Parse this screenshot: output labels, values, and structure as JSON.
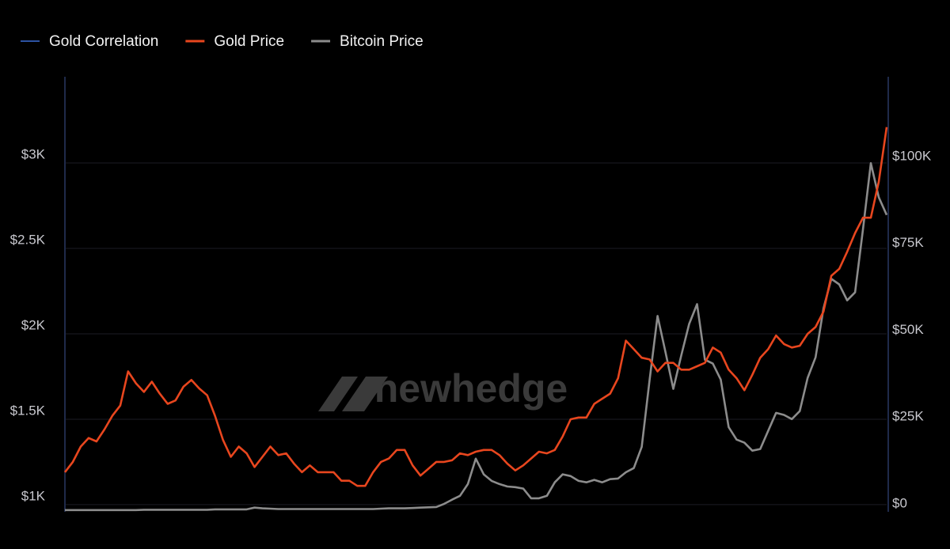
{
  "chart_data": {
    "type": "line",
    "watermark": "newhedge",
    "series": [
      {
        "name": "Gold Correlation",
        "color": "#3b6fd8",
        "axis": "y",
        "values": [
          null,
          null,
          null,
          null,
          null,
          null,
          null,
          null,
          null,
          null,
          null,
          null,
          null,
          null,
          null,
          null,
          null,
          null,
          null,
          null,
          null,
          null,
          null,
          null,
          null,
          null,
          null,
          null,
          null,
          null,
          null,
          null,
          null,
          null,
          null,
          null,
          null,
          null,
          null,
          null,
          null,
          null,
          null,
          null,
          null,
          null,
          null,
          null,
          null,
          null,
          null,
          null,
          null,
          null,
          null,
          null,
          null,
          null,
          null,
          null,
          null,
          null,
          null,
          null,
          null,
          null,
          null,
          null,
          null,
          null,
          null,
          null,
          null,
          null,
          null,
          null,
          null,
          null,
          null,
          null,
          null,
          null,
          null,
          null,
          null,
          null,
          null,
          null,
          null,
          null,
          null,
          null,
          null,
          null,
          null,
          null,
          null,
          null,
          null,
          null,
          null,
          null,
          null,
          null,
          null
        ]
      },
      {
        "name": "Gold Price",
        "color": "#e8461e",
        "axis": "y",
        "values": [
          1190,
          1250,
          1340,
          1390,
          1370,
          1440,
          1520,
          1580,
          1780,
          1710,
          1660,
          1720,
          1650,
          1590,
          1610,
          1690,
          1730,
          1680,
          1640,
          1520,
          1380,
          1280,
          1340,
          1300,
          1220,
          1280,
          1340,
          1290,
          1300,
          1240,
          1190,
          1230,
          1190,
          1190,
          1190,
          1140,
          1140,
          1110,
          1110,
          1190,
          1250,
          1270,
          1320,
          1320,
          1230,
          1170,
          1210,
          1250,
          1250,
          1260,
          1300,
          1290,
          1310,
          1320,
          1320,
          1290,
          1240,
          1200,
          1230,
          1270,
          1310,
          1300,
          1320,
          1400,
          1500,
          1510,
          1510,
          1590,
          1620,
          1650,
          1740,
          1960,
          1910,
          1860,
          1850,
          1780,
          1830,
          1830,
          1790,
          1790,
          1810,
          1830,
          1920,
          1890,
          1790,
          1740,
          1670,
          1760,
          1860,
          1910,
          1990,
          1940,
          1920,
          1930,
          2000,
          2040,
          2130,
          2340,
          2380,
          2480,
          2590,
          2680,
          2680,
          2890,
          3210
        ]
      },
      {
        "name": "Bitcoin Price",
        "color": "#8c8c8c",
        "axis": "y2",
        "values": [
          0,
          0,
          0,
          0,
          0,
          0,
          0,
          0,
          0,
          0,
          100,
          100,
          100,
          100,
          100,
          100,
          100,
          100,
          100,
          200,
          200,
          200,
          200,
          200,
          700,
          500,
          400,
          300,
          300,
          300,
          300,
          300,
          300,
          300,
          300,
          300,
          300,
          300,
          300,
          300,
          400,
          500,
          500,
          500,
          600,
          700,
          800,
          900,
          1800,
          3000,
          4100,
          7500,
          14800,
          10300,
          8400,
          7500,
          6800,
          6600,
          6200,
          3400,
          3400,
          4100,
          8000,
          10300,
          9800,
          8400,
          8000,
          8700,
          8000,
          8900,
          9100,
          10900,
          12100,
          18200,
          37600,
          55900,
          45600,
          34900,
          44500,
          53600,
          59300,
          43300,
          42200,
          37600,
          23900,
          20300,
          19400,
          17100,
          17600,
          22800,
          28000,
          27400,
          26200,
          28500,
          38100,
          44000,
          58100,
          66600,
          65000,
          60400,
          62700,
          80900,
          99900,
          90100,
          85000
        ]
      }
    ],
    "ylim": [
      958,
      3505
    ],
    "yticks": [
      {
        "value": 1000,
        "label": "$1K"
      },
      {
        "value": 1500,
        "label": "$1.5K"
      },
      {
        "value": 2000,
        "label": "$2K"
      },
      {
        "value": 2500,
        "label": "$2.5K"
      },
      {
        "value": 3000,
        "label": "$3K"
      }
    ],
    "y2lim": [
      -500,
      124800
    ],
    "y2ticks": [
      {
        "value": 0,
        "label": "$0"
      },
      {
        "value": 25000,
        "label": "$25K"
      },
      {
        "value": 50000,
        "label": "$50K"
      },
      {
        "value": 75000,
        "label": "$75K"
      },
      {
        "value": 100000,
        "label": "$100K"
      }
    ],
    "grid": true,
    "legend": "top-left"
  }
}
